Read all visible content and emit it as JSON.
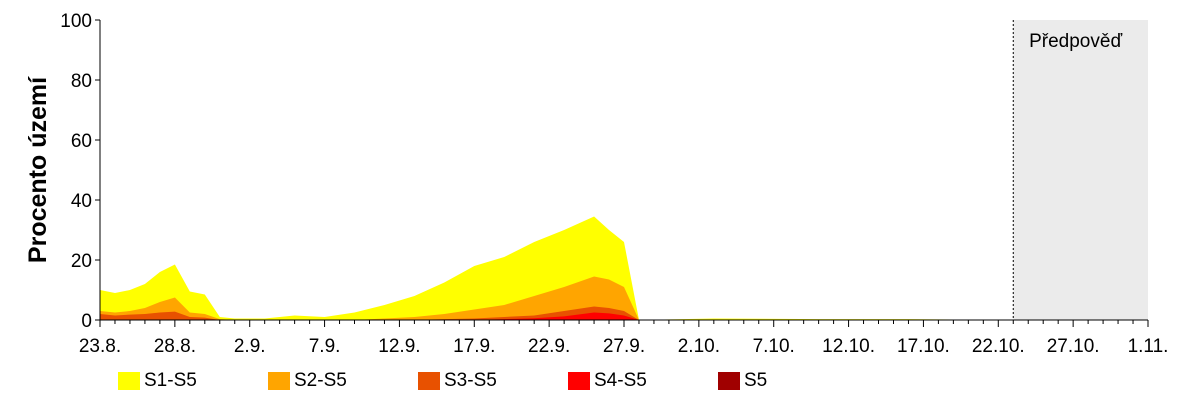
{
  "chart_data": {
    "type": "area",
    "title": "",
    "ylabel": "Procento území",
    "xlabel": "",
    "ylim": [
      0,
      100
    ],
    "yticks": [
      0,
      20,
      40,
      60,
      80,
      100
    ],
    "xlim": [
      "2024-08-23",
      "2024-11-01"
    ],
    "x_tick_labels": [
      "23.8.",
      "28.8.",
      "2.9.",
      "7.9.",
      "12.9.",
      "17.9.",
      "22.9.",
      "27.9.",
      "2.10.",
      "7.10.",
      "12.10.",
      "17.10.",
      "22.10.",
      "27.10.",
      "1.11."
    ],
    "forecast": {
      "label": "Předpověď",
      "start": "2024-10-23",
      "end": "2024-11-01",
      "color": "#ebebeb"
    },
    "stacked": false,
    "x": [
      "2024-08-23",
      "2024-08-24",
      "2024-08-25",
      "2024-08-26",
      "2024-08-27",
      "2024-08-28",
      "2024-08-29",
      "2024-08-30",
      "2024-08-31",
      "2024-09-01",
      "2024-09-03",
      "2024-09-05",
      "2024-09-07",
      "2024-09-09",
      "2024-09-11",
      "2024-09-13",
      "2024-09-15",
      "2024-09-17",
      "2024-09-19",
      "2024-09-21",
      "2024-09-23",
      "2024-09-25",
      "2024-09-26",
      "2024-09-27",
      "2024-09-28",
      "2024-10-03",
      "2024-10-10",
      "2024-10-16",
      "2024-10-23"
    ],
    "series": [
      {
        "name": "S1-S5",
        "color": "#ffff00",
        "values": [
          10,
          9,
          10,
          12,
          16,
          18.5,
          9.5,
          8.5,
          1,
          0.5,
          0.5,
          1.5,
          1,
          2.5,
          5,
          8,
          12.5,
          18,
          21,
          26,
          30,
          34.5,
          30,
          26,
          0,
          0.5,
          0.3,
          0.3,
          0
        ]
      },
      {
        "name": "S2-S5",
        "color": "#ffa500",
        "values": [
          3,
          2.5,
          3,
          4,
          6,
          7.5,
          2.5,
          2,
          0.3,
          0,
          0,
          0,
          0,
          0,
          0.5,
          1,
          2,
          3.5,
          5,
          8,
          11,
          14.5,
          13.5,
          11,
          0,
          0,
          0,
          0,
          0
        ]
      },
      {
        "name": "S3-S5",
        "color": "#e85100",
        "values": [
          2,
          1.5,
          1.8,
          2,
          2.5,
          2.8,
          1,
          0.8,
          0,
          0,
          0,
          0,
          0,
          0,
          0,
          0,
          0.3,
          0.5,
          1,
          1.5,
          3,
          4.5,
          4,
          3,
          0,
          0,
          0,
          0,
          0
        ]
      },
      {
        "name": "S4-S5",
        "color": "#ff0000",
        "values": [
          0,
          0,
          0,
          0,
          0,
          0,
          0,
          0,
          0,
          0,
          0,
          0,
          0,
          0,
          0,
          0,
          0,
          0,
          0.3,
          0.6,
          1.2,
          2.5,
          2.2,
          1.5,
          0,
          0,
          0,
          0,
          0
        ]
      },
      {
        "name": "S5",
        "color": "#a00000",
        "values": [
          0,
          0,
          0,
          0,
          0,
          0,
          0,
          0,
          0,
          0,
          0,
          0,
          0,
          0,
          0,
          0,
          0,
          0,
          0,
          0,
          0,
          0,
          0,
          0,
          0,
          0,
          0,
          0,
          0
        ]
      }
    ],
    "legend": [
      "S1-S5",
      "S2-S5",
      "S3-S5",
      "S4-S5",
      "S5"
    ],
    "legend_position": "bottom",
    "grid": false
  }
}
